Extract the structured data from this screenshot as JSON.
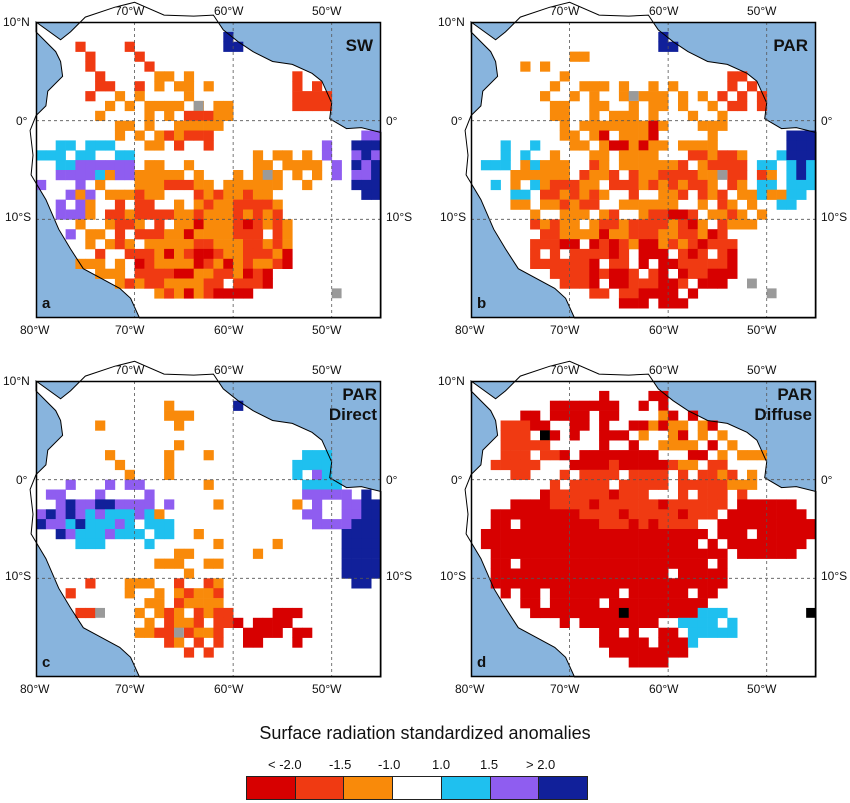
{
  "figure": {
    "legend_title": "Surface radiation standardized anomalies",
    "legend_ticks": [
      "< -2.0",
      "-1.5",
      "-1.0",
      "1.0",
      "1.5",
      "> 2.0"
    ],
    "legend_colors": [
      "#d70000",
      "#f03a12",
      "#f98a0a",
      "#ffffff",
      "#1fc0ef",
      "#8f5df0",
      "#11209a"
    ]
  },
  "colors": {
    "ocean": "#88b4dd",
    "land": "#ffffff",
    "grid": "#555555",
    "coast": "#000000",
    "missing": "#9a9a9a",
    "extreme": "#000000"
  },
  "axes": {
    "top_ticks": [
      "70°W",
      "60°W",
      "50°W"
    ],
    "bottom_ticks": [
      "80°W",
      "70°W",
      "60°W",
      "50°W"
    ],
    "left_ticks": [
      "10°N",
      "0°",
      "10°S"
    ],
    "right_ticks": [
      "0°",
      "10°S"
    ]
  },
  "panels": [
    {
      "letter": "a",
      "title_lines": [
        "SW"
      ]
    },
    {
      "letter": "b",
      "title_lines": [
        "PAR"
      ]
    },
    {
      "letter": "c",
      "title_lines": [
        "PAR",
        "Direct"
      ]
    },
    {
      "letter": "d",
      "title_lines": [
        "PAR",
        "Diffuse"
      ]
    }
  ]
}
